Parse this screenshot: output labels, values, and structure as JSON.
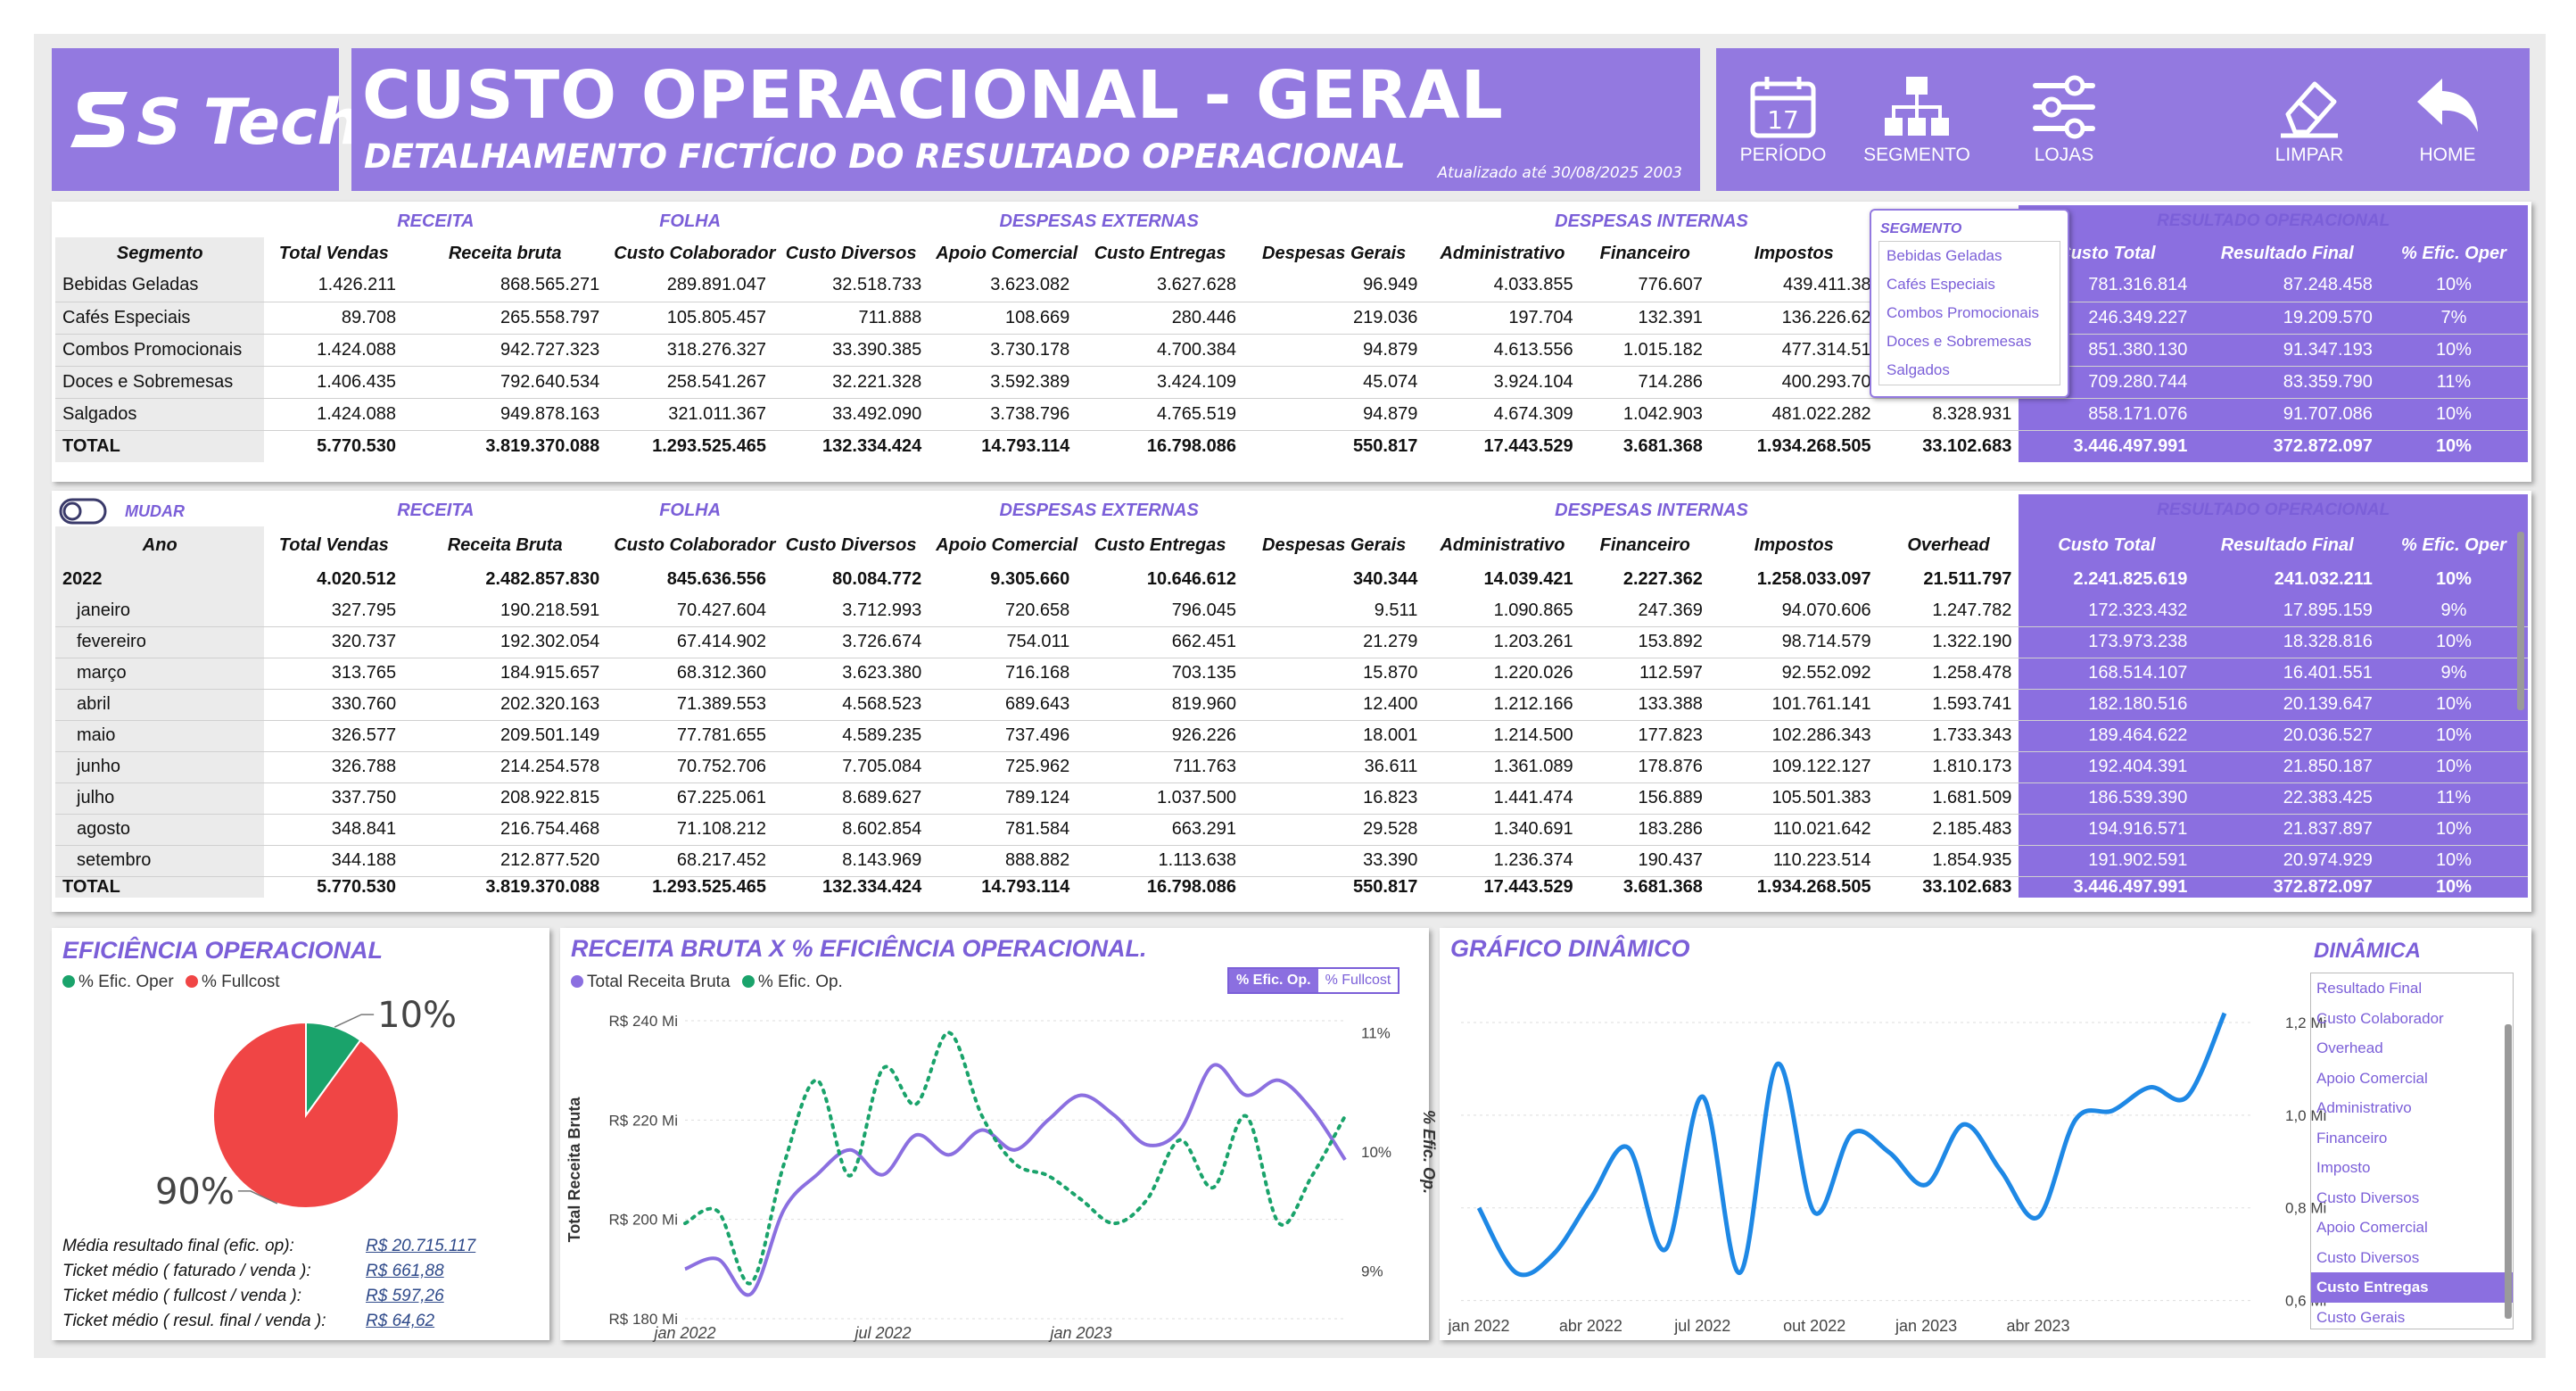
{
  "header": {
    "logo": "S Tech",
    "title": "CUSTO OPERACIONAL - GERAL",
    "subtitle": "DETALHAMENTO FICTÍCIO DO RESULTADO OPERACIONAL",
    "updated": "Atualizado até 30/08/2025 2003"
  },
  "nav": [
    {
      "label": "PERÍODO",
      "icon": "calendar-icon",
      "day": "17"
    },
    {
      "label": "SEGMENTO",
      "icon": "hierarchy-icon"
    },
    {
      "label": "LOJAS",
      "icon": "sliders-icon"
    },
    {
      "label": "LIMPAR",
      "icon": "eraser-icon"
    },
    {
      "label": "HOME",
      "icon": "back-arrow-icon"
    }
  ],
  "colors": {
    "accent": "#9379e0",
    "accentDark": "#7b5fd8",
    "green": "#1aa36b",
    "red": "#f04545",
    "blue": "#1e88e5"
  },
  "segment_table": {
    "groups": [
      "RECEITA",
      "FOLHA",
      "DESPESAS EXTERNAS",
      "DESPESAS INTERNAS",
      "RESULTADO OPERACIONAL"
    ],
    "columns": [
      "Segmento",
      "Total Vendas",
      "Receita bruta",
      "Custo Colaborador",
      "Custo Diversos",
      "Apoio Comercial",
      "Custo Entregas",
      "Despesas Gerais",
      "Administrativo",
      "Financeiro",
      "Impostos",
      "",
      "Custo Total",
      "Resultado Final",
      "% Efic. Oper"
    ],
    "rows": [
      [
        "Bebidas Geladas",
        "1.426.211",
        "868.565.271",
        "289.891.047",
        "32.518.733",
        "3.623.082",
        "3.627.628",
        "96.949",
        "4.033.855",
        "776.607",
        "439.411.38",
        "",
        "781.316.814",
        "87.248.458",
        "10%"
      ],
      [
        "Cafés Especiais",
        "89.708",
        "265.558.797",
        "105.805.457",
        "711.888",
        "108.669",
        "280.446",
        "219.036",
        "197.704",
        "132.391",
        "136.226.62",
        "",
        "246.349.227",
        "19.209.570",
        "7%"
      ],
      [
        "Combos Promocionais",
        "1.424.088",
        "942.727.323",
        "318.276.327",
        "33.390.385",
        "3.730.178",
        "4.700.384",
        "94.879",
        "4.613.556",
        "1.015.182",
        "477.314.51",
        "",
        "851.380.130",
        "91.347.193",
        "10%"
      ],
      [
        "Doces e Sobremesas",
        "1.406.435",
        "792.640.534",
        "258.541.267",
        "32.221.328",
        "3.592.389",
        "3.424.109",
        "45.074",
        "3.924.104",
        "714.286",
        "400.293.70",
        "",
        "709.280.744",
        "83.359.790",
        "11%"
      ],
      [
        "Salgados",
        "1.424.088",
        "949.878.163",
        "321.011.367",
        "33.492.090",
        "3.738.796",
        "4.765.519",
        "94.879",
        "4.674.309",
        "1.042.903",
        "481.022.282",
        "8.328.931",
        "858.171.076",
        "91.707.086",
        "10%"
      ]
    ],
    "total": [
      "TOTAL",
      "5.770.530",
      "3.819.370.088",
      "1.293.525.465",
      "132.334.424",
      "14.793.114",
      "16.798.086",
      "550.817",
      "17.443.529",
      "3.681.368",
      "1.934.268.505",
      "33.102.683",
      "3.446.497.991",
      "372.872.097",
      "10%"
    ]
  },
  "segment_dropdown": {
    "title": "SEGMENTO",
    "items": [
      "Bebidas Geladas",
      "Cafés Especiais",
      "Combos Promocionais",
      "Doces e Sobremesas",
      "Salgados"
    ]
  },
  "year_table": {
    "toggle_label": "MUDAR",
    "groups": [
      "RECEITA",
      "FOLHA",
      "DESPESAS EXTERNAS",
      "DESPESAS INTERNAS",
      "RESULTADO OPERACIONAL"
    ],
    "columns": [
      "Ano",
      "Total Vendas",
      "Receita Bruta",
      "Custo Colaborador",
      "Custo Diversos",
      "Apoio Comercial",
      "Custo Entregas",
      "Despesas Gerais",
      "Administrativo",
      "Financeiro",
      "Impostos",
      "Overhead",
      "Custo Total",
      "Resultado Final",
      "% Efic. Oper"
    ],
    "year_row": [
      "2022",
      "4.020.512",
      "2.482.857.830",
      "845.636.556",
      "80.084.772",
      "9.305.660",
      "10.646.612",
      "340.344",
      "14.039.421",
      "2.227.362",
      "1.258.033.097",
      "21.511.797",
      "2.241.825.619",
      "241.032.211",
      "10%"
    ],
    "rows": [
      [
        "janeiro",
        "327.795",
        "190.218.591",
        "70.427.604",
        "3.712.993",
        "720.658",
        "796.045",
        "9.511",
        "1.090.865",
        "247.369",
        "94.070.606",
        "1.247.782",
        "172.323.432",
        "17.895.159",
        "9%"
      ],
      [
        "fevereiro",
        "320.737",
        "192.302.054",
        "67.414.902",
        "3.726.674",
        "754.011",
        "662.451",
        "21.279",
        "1.203.261",
        "153.892",
        "98.714.579",
        "1.322.190",
        "173.973.238",
        "18.328.816",
        "10%"
      ],
      [
        "março",
        "313.765",
        "184.915.657",
        "68.312.360",
        "3.623.380",
        "716.168",
        "703.135",
        "15.870",
        "1.220.026",
        "112.597",
        "92.552.092",
        "1.258.478",
        "168.514.107",
        "16.401.551",
        "9%"
      ],
      [
        "abril",
        "330.760",
        "202.320.163",
        "71.389.553",
        "4.568.523",
        "689.643",
        "819.960",
        "12.400",
        "1.212.166",
        "133.388",
        "101.761.141",
        "1.593.741",
        "182.180.516",
        "20.139.647",
        "10%"
      ],
      [
        "maio",
        "326.577",
        "209.501.149",
        "77.781.655",
        "4.589.235",
        "737.496",
        "926.226",
        "18.001",
        "1.214.500",
        "177.823",
        "102.286.343",
        "1.733.343",
        "189.464.622",
        "20.036.527",
        "10%"
      ],
      [
        "junho",
        "326.788",
        "214.254.578",
        "70.752.706",
        "7.705.084",
        "725.962",
        "711.763",
        "36.611",
        "1.361.089",
        "178.876",
        "109.122.127",
        "1.810.173",
        "192.404.391",
        "21.850.187",
        "10%"
      ],
      [
        "julho",
        "337.750",
        "208.922.815",
        "67.225.061",
        "8.689.627",
        "789.124",
        "1.037.500",
        "16.823",
        "1.441.474",
        "156.889",
        "105.501.383",
        "1.681.509",
        "186.539.390",
        "22.383.425",
        "11%"
      ],
      [
        "agosto",
        "348.841",
        "216.754.468",
        "71.108.212",
        "8.602.854",
        "781.584",
        "663.291",
        "29.528",
        "1.340.691",
        "183.286",
        "110.021.642",
        "2.185.483",
        "194.916.571",
        "21.837.897",
        "10%"
      ],
      [
        "setembro",
        "344.188",
        "212.877.520",
        "68.217.452",
        "8.143.969",
        "888.882",
        "1.113.638",
        "33.390",
        "1.236.374",
        "190.437",
        "110.223.514",
        "1.854.935",
        "191.902.591",
        "20.974.929",
        "10%"
      ]
    ],
    "total": [
      "TOTAL",
      "5.770.530",
      "3.819.370.088",
      "1.293.525.465",
      "132.334.424",
      "14.793.114",
      "16.798.086",
      "550.817",
      "17.443.529",
      "3.681.368",
      "1.934.268.505",
      "33.102.683",
      "3.446.497.991",
      "372.872.097",
      "10%"
    ]
  },
  "efficiency": {
    "title": "EFICIÊNCIA OPERACIONAL",
    "legend": [
      "% Efic. Oper",
      "% Fullcost"
    ],
    "kpis": [
      {
        "label": "Média resultado final (efic. op):",
        "value": "R$ 20.715.117"
      },
      {
        "label": "Ticket médio ( faturado / venda ):",
        "value": "R$ 661,88"
      },
      {
        "label": "Ticket médio ( fullcost / venda ):",
        "value": "R$ 597,26"
      },
      {
        "label": "Ticket médio ( resul. final / venda ):",
        "value": "R$ 64,62"
      }
    ]
  },
  "revenue_chart": {
    "title": "RECEITA BRUTA X % EFICIÊNCIA OPERACIONAL.",
    "legend": [
      "Total Receita Bruta",
      "% Efic. Op."
    ],
    "toggle": [
      "% Efic. Op.",
      "% Fullcost"
    ]
  },
  "dynamic_chart": {
    "title": "GRÁFICO DINÂMICO",
    "list_title": "DINÂMICA",
    "options": [
      "Resultado Final",
      "Custo Colaborador",
      "Overhead",
      "Apoio Comercial",
      "Administrativo",
      "Financeiro",
      "Imposto",
      "Custo Diversos",
      "Apoio Comercial",
      "Custo Diversos",
      "Custo Entregas",
      "Custo Gerais"
    ],
    "selected": "Custo Entregas"
  },
  "chart_data": [
    {
      "type": "pie",
      "title": "EFICIÊNCIA OPERACIONAL",
      "labels": [
        "% Efic. Oper",
        "% Fullcost"
      ],
      "values": [
        10,
        90
      ],
      "data_labels": [
        "10%",
        "90%"
      ]
    },
    {
      "type": "line",
      "title": "RECEITA BRUTA X % EFICIÊNCIA OPERACIONAL.",
      "x": [
        "jan 2022",
        "fev 2022",
        "mar 2022",
        "abr 2022",
        "mai 2022",
        "jun 2022",
        "jul 2022",
        "ago 2022",
        "set 2022",
        "out 2022",
        "nov 2022",
        "dez 2022",
        "jan 2023",
        "fev 2023",
        "mar 2023",
        "abr 2023",
        "mai 2023",
        "jun 2023",
        "jul 2023",
        "ago 2023",
        "set 2023"
      ],
      "x_ticks": [
        "jan 2022",
        "jul 2022",
        "jan 2023"
      ],
      "ylabel": "Total Receita Bruta",
      "y2label": "% Efic. Op.",
      "y_ticks": [
        "R$ 180 Mi",
        "R$ 200 Mi",
        "R$ 220 Mi",
        "R$ 240 Mi"
      ],
      "ylim": [
        180,
        240
      ],
      "y2_ticks": [
        "9%",
        "10%",
        "11%"
      ],
      "y2lim": [
        8.6,
        11.1
      ],
      "series": [
        {
          "name": "Total Receita Bruta",
          "axis": "left",
          "values": [
            190,
            192,
            185,
            202,
            209,
            214,
            209,
            217,
            213,
            218,
            214,
            220,
            225,
            221,
            215,
            218,
            231,
            225,
            228,
            222,
            212
          ]
        },
        {
          "name": "% Efic. Op.",
          "axis": "right",
          "values": [
            9.4,
            9.5,
            8.9,
            9.9,
            10.6,
            9.8,
            10.7,
            10.4,
            11.0,
            10.3,
            9.9,
            9.8,
            9.6,
            9.4,
            9.6,
            10.1,
            9.7,
            10.3,
            9.4,
            9.8,
            10.3
          ]
        }
      ]
    },
    {
      "type": "line",
      "title": "GRÁFICO DINÂMICO",
      "series_name": "Custo Entregas",
      "x": [
        "jan 2022",
        "fev 2022",
        "mar 2022",
        "abr 2022",
        "mai 2022",
        "jun 2022",
        "jul 2022",
        "ago 2022",
        "set 2022",
        "out 2022",
        "nov 2022",
        "dez 2022",
        "jan 2023",
        "fev 2023",
        "mar 2023",
        "abr 2023",
        "mai 2023",
        "jun 2023",
        "jul 2023",
        "ago 2023",
        "set 2023"
      ],
      "x_ticks": [
        "jan 2022",
        "abr 2022",
        "jul 2022",
        "out 2022",
        "jan 2023",
        "abr 2023"
      ],
      "y_ticks": [
        "0,6 Mi",
        "0,8 Mi",
        "1,0 Mi",
        "1,2 Mi"
      ],
      "ylim": [
        0.58,
        1.25
      ],
      "values": [
        0.8,
        0.66,
        0.7,
        0.82,
        0.93,
        0.71,
        1.04,
        0.66,
        1.11,
        0.79,
        0.96,
        0.92,
        0.85,
        0.98,
        0.88,
        0.78,
        0.99,
        1.01,
        1.06,
        1.04,
        1.22
      ]
    }
  ]
}
